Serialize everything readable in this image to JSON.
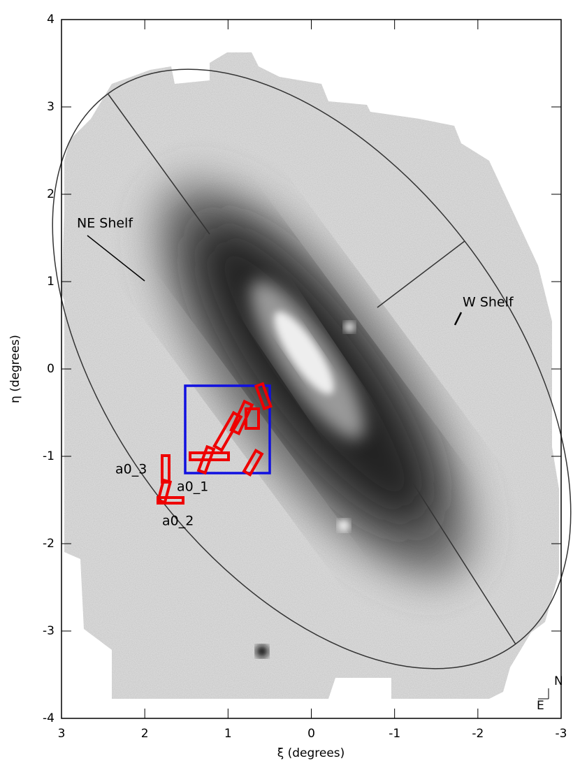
{
  "chart_data": {
    "type": "image-map",
    "xlabel": "ξ (degrees)",
    "ylabel": "η (degrees)",
    "xlim": [
      3,
      -3
    ],
    "ylim": [
      -4,
      4
    ],
    "xticks": [
      3,
      2,
      1,
      0,
      -1,
      -2,
      -3
    ],
    "yticks": [
      -4,
      -3,
      -2,
      -1,
      0,
      1,
      2,
      3,
      4
    ],
    "annotations": [
      "NE Shelf",
      "W Shelf",
      "a0_1",
      "a0_2",
      "a0_3"
    ],
    "compass": [
      "N",
      "E"
    ]
  }
}
